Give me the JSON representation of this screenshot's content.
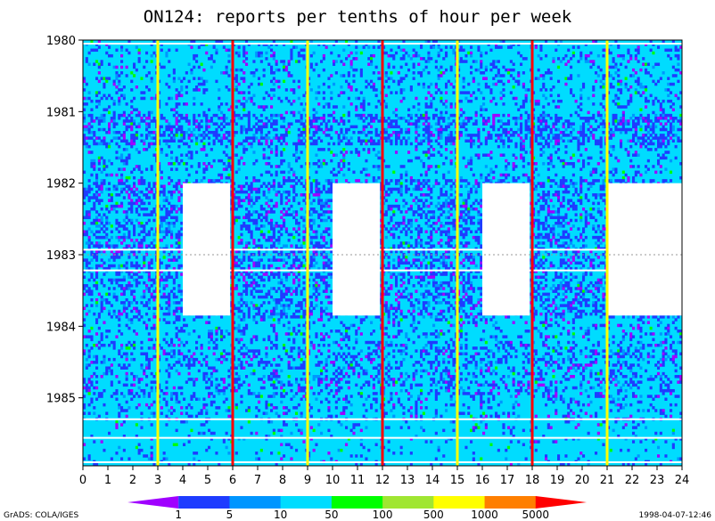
{
  "chart_data": {
    "type": "heatmap",
    "title": "ON124: reports per tenths of hour per week",
    "x": {
      "range": [
        0,
        24
      ],
      "ticks": [
        0,
        1,
        2,
        3,
        4,
        5,
        6,
        7,
        8,
        9,
        10,
        11,
        12,
        13,
        14,
        15,
        16,
        17,
        18,
        19,
        20,
        21,
        22,
        23,
        24
      ],
      "tick_labels": [
        "0",
        "1",
        "2",
        "3",
        "4",
        "5",
        "6",
        "7",
        "8",
        "9",
        "10",
        "11",
        "12",
        "13",
        "14",
        "15",
        "16",
        "17",
        "18",
        "19",
        "20",
        "21",
        "22",
        "23",
        "24"
      ]
    },
    "y": {
      "range": [
        1980,
        1985.95
      ],
      "ticks": [
        1980,
        1981,
        1982,
        1983,
        1984,
        1985
      ],
      "tick_labels": [
        "1980",
        "1981",
        "1982",
        "1983",
        "1984",
        "1985"
      ],
      "reversed": true
    },
    "grid": "dotted gray at 3-hour intervals and at 1983",
    "vertical_markers": [
      {
        "x": 3,
        "color": "yellow"
      },
      {
        "x": 6,
        "color": "red"
      },
      {
        "x": 9,
        "color": "yellow"
      },
      {
        "x": 12,
        "color": "red"
      },
      {
        "x": 15,
        "color": "yellow"
      },
      {
        "x": 18,
        "color": "red"
      },
      {
        "x": 21,
        "color": "yellow"
      }
    ],
    "missing_blocks": [
      {
        "x_range": [
          4,
          5.9
        ],
        "y_range": [
          1982.0,
          1983.85
        ]
      },
      {
        "x_range": [
          10,
          11.9
        ],
        "y_range": [
          1982.0,
          1983.85
        ]
      },
      {
        "x_range": [
          16,
          17.9
        ],
        "y_range": [
          1982.0,
          1983.85
        ]
      },
      {
        "x_range": [
          21,
          24
        ],
        "y_range": [
          1982.0,
          1983.85
        ]
      }
    ],
    "colorbar": {
      "levels": [
        "1",
        "5",
        "10",
        "50",
        "100",
        "500",
        "1000",
        "5000"
      ],
      "colors": [
        "#a000ff",
        "#1e3cff",
        "#0096ff",
        "#00dcff",
        "#00ff00",
        "#a0e632",
        "#ffff00",
        "#ff7f00",
        "#ff0000"
      ]
    }
  },
  "footer": {
    "left": "GrADS: COLA/IGES",
    "right": "1998-04-07-12:46"
  }
}
